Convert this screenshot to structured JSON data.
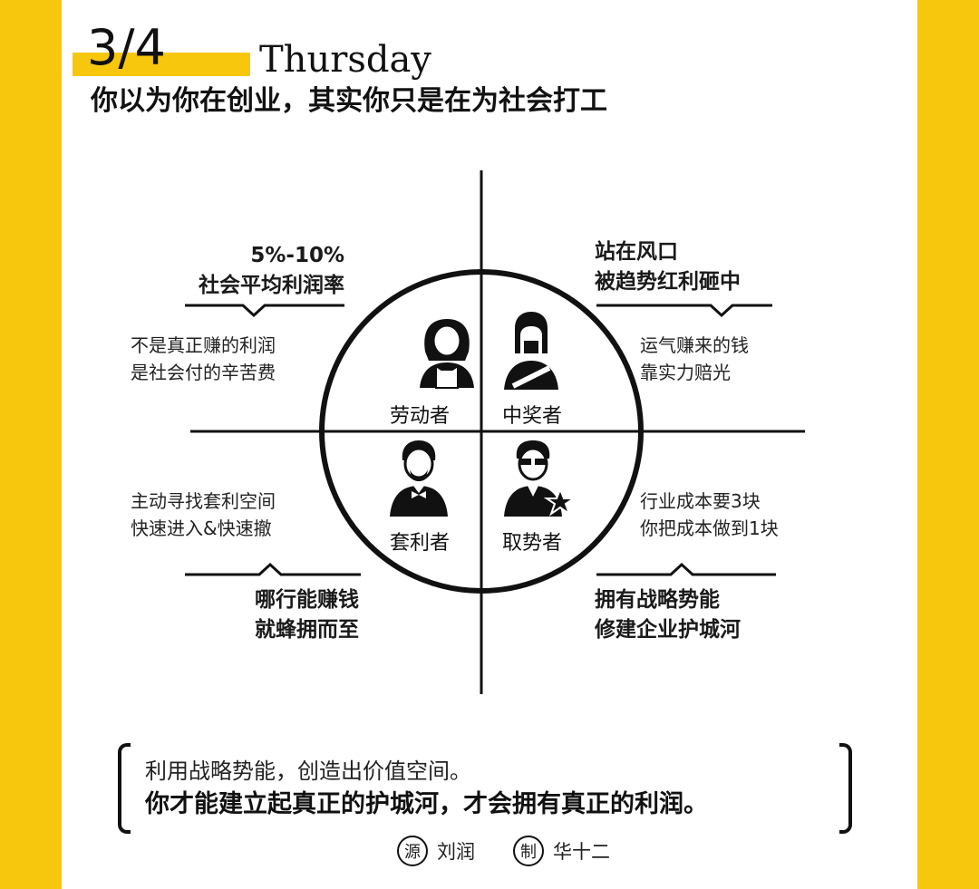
{
  "header": {
    "page_number": "3/4",
    "day": "Thursday",
    "headline": "你以为你在创业，其实你只是在为社会打工"
  },
  "quadrants": {
    "top_left": {
      "role": "劳动者",
      "title_line1": "5%-10%",
      "title_line2": "社会平均利润率",
      "desc_line1": "不是真正赚的利润",
      "desc_line2": "是社会付的辛苦费",
      "icon": "laborer-icon"
    },
    "top_right": {
      "role": "中奖者",
      "title_line1": "站在风口",
      "title_line2": "被趋势红利砸中",
      "desc_line1": "运气赚来的钱",
      "desc_line2": "靠实力赔光",
      "icon": "winner-icon"
    },
    "bottom_left": {
      "role": "套利者",
      "title_line1": "哪行能赚钱",
      "title_line2": "就蜂拥而至",
      "desc_line1": "主动寻找套利空间",
      "desc_line2": "快速进入&快速撤",
      "icon": "arbitrageur-icon"
    },
    "bottom_right": {
      "role": "取势者",
      "title_line1": "拥有战略势能",
      "title_line2": "修建企业护城河",
      "desc_line1": "行业成本要3块",
      "desc_line2": "你把成本做到1块",
      "icon": "strategist-icon"
    }
  },
  "quote": {
    "line1": "利用战略势能，创造出价值空间。",
    "line2": "你才能建立起真正的护城河，才会拥有真正的利润。"
  },
  "credits": {
    "source_mark": "源",
    "source_name": "刘润",
    "maker_mark": "制",
    "maker_name": "华十二"
  },
  "colors": {
    "accent": "#f6c70c",
    "ink": "#111111",
    "background": "#ffffff"
  }
}
